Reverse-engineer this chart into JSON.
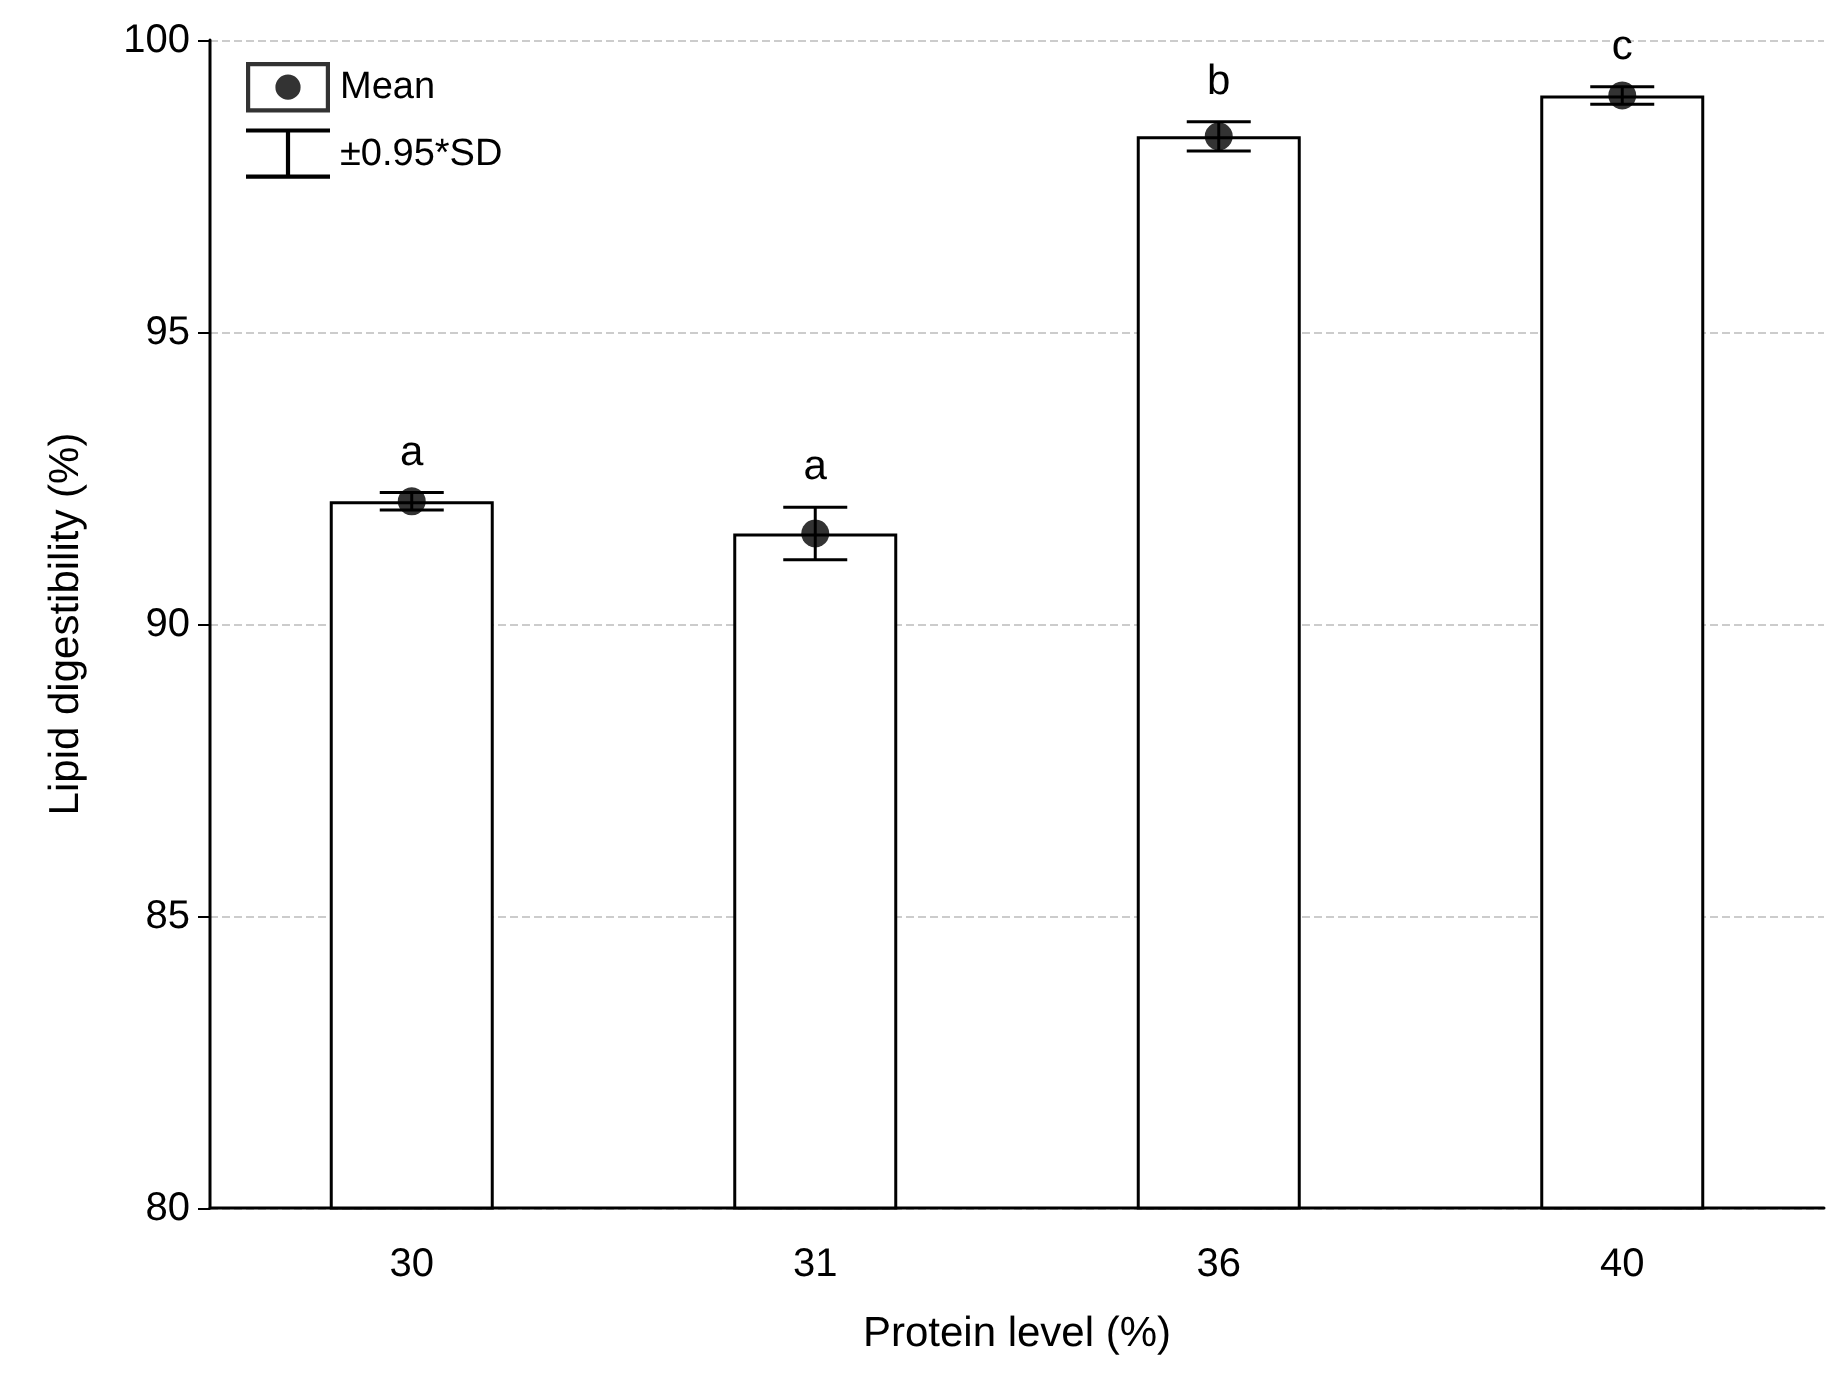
{
  "chart_data": {
    "type": "bar",
    "xlabel": "Protein level (%)",
    "ylabel": "Lipid digestibility (%)",
    "categories": [
      "30",
      "31",
      "36",
      "40"
    ],
    "series": [
      {
        "color": "#ffffff",
        "values": [
          92.1,
          91.55,
          98.35,
          99.05
        ],
        "errors": [
          0.15,
          0.45,
          0.25,
          0.15
        ]
      },
      {
        "type": "scatter",
        "name": "Mean",
        "color": "#000000",
        "x": [
          "30",
          "31",
          "36",
          "40"
        ],
        "values": [
          92.1,
          91.55,
          98.35,
          99.05
        ]
      }
    ],
    "annotations": [
      "±0.95*SD",
      {
        "text": "a",
        "x": "30",
        "y": 92.25
      },
      {
        "text": "a",
        "x": "31",
        "y": 92.0
      },
      {
        "text": "b",
        "x": "36",
        "y": 98.6
      },
      {
        "text": "c",
        "x": "40",
        "y": 99.2
      }
    ],
    "ylim": [
      80,
      100
    ],
    "yticks": [
      80,
      85,
      90,
      95,
      100
    ],
    "grid": "y",
    "legend": "top left",
    "marker": "circle"
  }
}
